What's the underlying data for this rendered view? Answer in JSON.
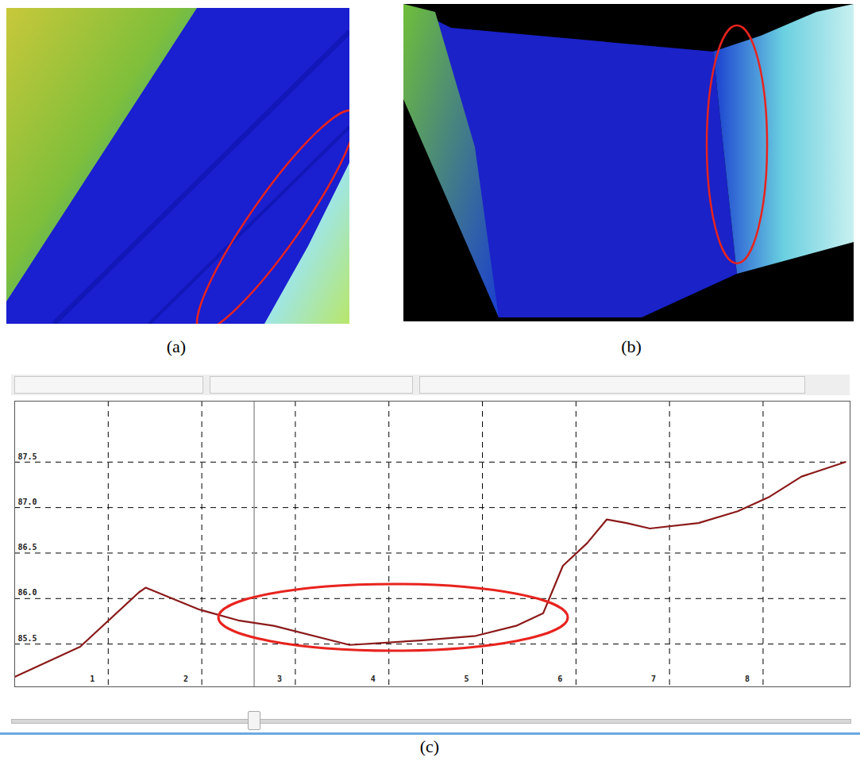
{
  "panels": [
    {
      "label": "(a)"
    },
    {
      "label": "(b)"
    }
  ],
  "chart_data": {
    "type": "line",
    "title": "(c)",
    "x": [
      0,
      0.7,
      1.33,
      1.4,
      1.97,
      2.39,
      2.77,
      3.58,
      4.34,
      4.93,
      5.36,
      5.65,
      5.86,
      6.12,
      6.33,
      6.54,
      6.79,
      7.31,
      7.73,
      8.07,
      8.41,
      8.88
    ],
    "values": [
      85.14,
      85.47,
      86.07,
      86.12,
      85.88,
      85.76,
      85.7,
      85.49,
      85.54,
      85.59,
      85.7,
      85.84,
      86.36,
      86.61,
      86.87,
      86.83,
      86.77,
      86.83,
      86.96,
      87.12,
      87.34,
      87.5
    ],
    "color": "#8b1a1a",
    "xlim": [
      0,
      8.93
    ],
    "xticks": [
      1,
      2,
      3,
      4,
      5,
      6,
      7,
      8
    ],
    "ylim": [
      85.03,
      88.17
    ],
    "yticks": [
      85.5,
      {
        "value": 86,
        "label": "86.0"
      },
      86.5,
      {
        "value": 87,
        "label": "87.0"
      },
      87.5
    ],
    "grid": true,
    "cursor_x": 2.56
  }
}
